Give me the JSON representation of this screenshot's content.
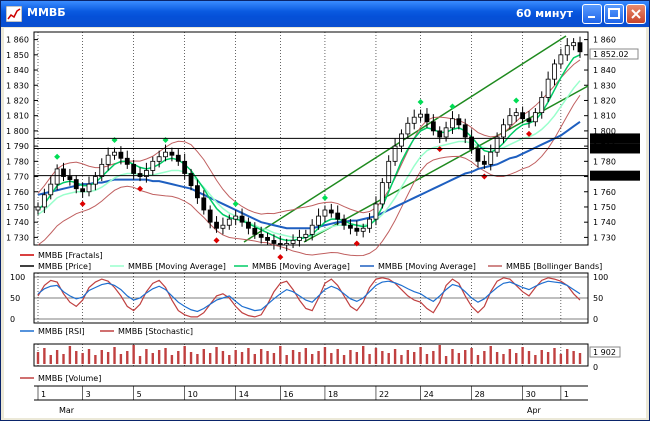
{
  "window": {
    "title": "ММВБ",
    "timeframe": "60 минут",
    "colors": {
      "titlebar": "#0a5ae0",
      "close": "#c8452b"
    },
    "controls": [
      "minimize-icon",
      "maximize-icon",
      "close-icon"
    ]
  },
  "price_panel": {
    "y_ticks": [
      "1 860",
      "1 850",
      "1 840",
      "1 830",
      "1 820",
      "1 810",
      "1 800",
      "1 790",
      "1 780",
      "1 770",
      "1 760",
      "1 750",
      "1 740",
      "1 730"
    ],
    "last_price": "1 852.02",
    "levels": [
      {
        "label": "1795.05388",
        "value": 1795.05
      },
      {
        "label": "1788.44107",
        "value": 1788.44
      },
      {
        "label": "1770.56650",
        "value": 1770.57
      }
    ],
    "legend": [
      {
        "text": "ММВБ [Fractals]",
        "color": "#cc0000"
      },
      {
        "text": "ММВБ [Price]",
        "color": "#000000"
      },
      {
        "text": "ММВБ [Moving Average]",
        "color": "#99ffcc"
      },
      {
        "text": "ММВБ [Moving Average]",
        "color": "#00cc66"
      },
      {
        "text": "ММВБ [Moving Average]",
        "color": "#1e5fc0"
      },
      {
        "text": "ММВБ [Bollinger Bands]",
        "color": "#c06060"
      }
    ]
  },
  "osc_panel": {
    "y_ticks": [
      "100",
      "50",
      "0"
    ],
    "legend": [
      {
        "text": "ММВБ [RSI]",
        "color": "#1e6fd0"
      },
      {
        "text": "ММВБ [Stochastic]",
        "color": "#c04040"
      }
    ]
  },
  "volume_panel": {
    "last_volume": "1 902",
    "y_ticks": [
      "0"
    ],
    "legend": [
      {
        "text": "ММВБ [Volume]",
        "color": "#c04040"
      }
    ]
  },
  "x_axis": {
    "days": [
      "1",
      "3",
      "5",
      "10",
      "14",
      "16",
      "18",
      "22",
      "24",
      "28",
      "30",
      "1"
    ],
    "months": [
      "Mar",
      "Apr"
    ]
  },
  "chart_data": {
    "type": "candlestick",
    "ylim": [
      1725,
      1865
    ],
    "close": [
      1750,
      1758,
      1765,
      1775,
      1770,
      1768,
      1762,
      1760,
      1765,
      1770,
      1778,
      1784,
      1786,
      1782,
      1778,
      1772,
      1770,
      1774,
      1780,
      1783,
      1786,
      1784,
      1780,
      1772,
      1764,
      1756,
      1748,
      1740,
      1736,
      1738,
      1742,
      1744,
      1740,
      1736,
      1732,
      1730,
      1728,
      1726,
      1725,
      1726,
      1728,
      1730,
      1732,
      1738,
      1744,
      1748,
      1746,
      1742,
      1738,
      1736,
      1734,
      1736,
      1742,
      1752,
      1766,
      1780,
      1790,
      1798,
      1805,
      1809,
      1811,
      1806,
      1800,
      1796,
      1802,
      1808,
      1804,
      1796,
      1788,
      1780,
      1778,
      1786,
      1796,
      1804,
      1810,
      1812,
      1808,
      1806,
      1812,
      1822,
      1834,
      1844,
      1850,
      1856,
      1858,
      1852
    ],
    "ma_fast": [
      1748,
      1752,
      1758,
      1764,
      1766,
      1767,
      1766,
      1764,
      1764,
      1766,
      1770,
      1774,
      1778,
      1780,
      1780,
      1778,
      1776,
      1775,
      1776,
      1778,
      1781,
      1782,
      1781,
      1778,
      1774,
      1768,
      1762,
      1755,
      1749,
      1745,
      1743,
      1742,
      1741,
      1739,
      1737,
      1735,
      1733,
      1731,
      1729,
      1728,
      1728,
      1729,
      1730,
      1732,
      1736,
      1740,
      1742,
      1742,
      1741,
      1739,
      1738,
      1737,
      1738,
      1742,
      1750,
      1760,
      1770,
      1780,
      1788,
      1795,
      1800,
      1802,
      1801,
      1799,
      1799,
      1801,
      1802,
      1800,
      1796,
      1791,
      1787,
      1786,
      1788,
      1792,
      1797,
      1801,
      1804,
      1805,
      1807,
      1812,
      1819,
      1827,
      1835,
      1842,
      1848,
      1850
    ],
    "ma_slow": [
      1745,
      1748,
      1752,
      1756,
      1758,
      1759,
      1760,
      1760,
      1760,
      1761,
      1763,
      1766,
      1769,
      1771,
      1772,
      1772,
      1771,
      1771,
      1771,
      1772,
      1773,
      1774,
      1774,
      1773,
      1771,
      1767,
      1763,
      1758,
      1753,
      1749,
      1746,
      1744,
      1742,
      1740,
      1738,
      1736,
      1735,
      1733,
      1732,
      1731,
      1730,
      1730,
      1730,
      1731,
      1733,
      1735,
      1737,
      1738,
      1738,
      1738,
      1738,
      1738,
      1739,
      1741,
      1745,
      1750,
      1756,
      1763,
      1770,
      1777,
      1783,
      1787,
      1789,
      1790,
      1791,
      1792,
      1793,
      1793,
      1792,
      1790,
      1789,
      1788,
      1788,
      1789,
      1791,
      1793,
      1795,
      1796,
      1798,
      1801,
      1805,
      1810,
      1816,
      1822,
      1828,
      1833
    ],
    "ma_long": [
      1758,
      1759,
      1760,
      1761,
      1762,
      1763,
      1764,
      1765,
      1765,
      1766,
      1766,
      1767,
      1768,
      1768,
      1768,
      1768,
      1768,
      1768,
      1767,
      1767,
      1766,
      1765,
      1764,
      1763,
      1762,
      1760,
      1758,
      1756,
      1754,
      1752,
      1750,
      1748,
      1746,
      1744,
      1742,
      1740,
      1739,
      1738,
      1737,
      1736,
      1736,
      1736,
      1736,
      1736,
      1737,
      1738,
      1739,
      1740,
      1740,
      1741,
      1741,
      1742,
      1743,
      1744,
      1746,
      1748,
      1750,
      1752,
      1754,
      1756,
      1758,
      1760,
      1762,
      1764,
      1766,
      1768,
      1770,
      1772,
      1773,
      1775,
      1776,
      1777,
      1778,
      1780,
      1782,
      1783,
      1785,
      1787,
      1789,
      1791,
      1793,
      1795,
      1797,
      1800,
      1803,
      1806
    ],
    "rsi": [
      60,
      72,
      78,
      80,
      65,
      55,
      48,
      52,
      68,
      75,
      82,
      85,
      80,
      70,
      55,
      45,
      50,
      62,
      72,
      78,
      70,
      55,
      40,
      30,
      22,
      18,
      25,
      35,
      45,
      50,
      55,
      42,
      30,
      25,
      20,
      22,
      35,
      48,
      60,
      70,
      65,
      55,
      45,
      40,
      55,
      70,
      78,
      72,
      60,
      48,
      42,
      50,
      65,
      80,
      88,
      90,
      86,
      80,
      72,
      65,
      60,
      50,
      42,
      55,
      70,
      82,
      78,
      65,
      50,
      40,
      48,
      62,
      75,
      85,
      88,
      82,
      75,
      70,
      78,
      85,
      90,
      88,
      86,
      80,
      70,
      60
    ],
    "stochastic": [
      55,
      80,
      92,
      88,
      60,
      40,
      30,
      45,
      75,
      88,
      95,
      90,
      75,
      55,
      30,
      20,
      35,
      65,
      85,
      92,
      75,
      45,
      20,
      10,
      5,
      5,
      15,
      35,
      55,
      60,
      50,
      30,
      15,
      8,
      5,
      10,
      35,
      65,
      85,
      90,
      70,
      45,
      25,
      20,
      50,
      85,
      95,
      80,
      55,
      30,
      20,
      40,
      75,
      95,
      98,
      95,
      85,
      70,
      55,
      45,
      40,
      25,
      15,
      40,
      80,
      95,
      85,
      55,
      30,
      15,
      30,
      65,
      90,
      98,
      95,
      80,
      65,
      55,
      75,
      92,
      98,
      95,
      90,
      80,
      60,
      45
    ],
    "volume": [
      12,
      16,
      9,
      14,
      10,
      18,
      13,
      11,
      15,
      9,
      14,
      12,
      17,
      10,
      13,
      19,
      8,
      15,
      11,
      14,
      16,
      9,
      13,
      18,
      12,
      10,
      15,
      11,
      17,
      13,
      9,
      14,
      12,
      16,
      10,
      15,
      13,
      11,
      18,
      9,
      14,
      12,
      16,
      10,
      13,
      17,
      11,
      15,
      9,
      14,
      12,
      18,
      10,
      16,
      13,
      11,
      15,
      9,
      14,
      12,
      17,
      10,
      13,
      19,
      8,
      15,
      11,
      14,
      16,
      9,
      13,
      18,
      12,
      10,
      15,
      11,
      17,
      13,
      9,
      14,
      12,
      16,
      10,
      15,
      13,
      11
    ]
  }
}
